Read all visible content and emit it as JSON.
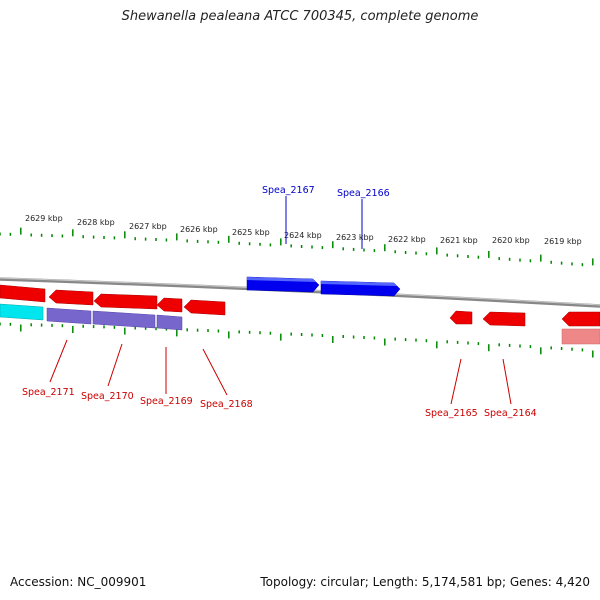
{
  "title": "Shewanella pealeana ATCC 700345, complete genome",
  "footer": {
    "accession": "Accession: NC_009901",
    "summary": "Topology: circular; Length: 5,174,581 bp; Genes: 4,420"
  },
  "colors": {
    "forward_gene": "#0000ee",
    "reverse_gene": "#ee0000",
    "cds_purple": "#7766cc",
    "cds_cyan": "#00e5ee",
    "pink": "#ee8888",
    "backbone": "#888888",
    "ticks": "#008800"
  },
  "scale_labels": [
    "2629 kbp",
    "2628 kbp",
    "2627 kbp",
    "2626 kbp",
    "2625 kbp",
    "2624 kbp",
    "2623 kbp",
    "2622 kbp",
    "2621 kbp",
    "2620 kbp",
    "2619 kbp"
  ],
  "gene_labels": {
    "forward": [
      "Spea_2167",
      "Spea_2166"
    ],
    "reverse": [
      "Spea_2171",
      "Spea_2170",
      "Spea_2169",
      "Spea_2168",
      "Spea_2165",
      "Spea_2164"
    ]
  }
}
